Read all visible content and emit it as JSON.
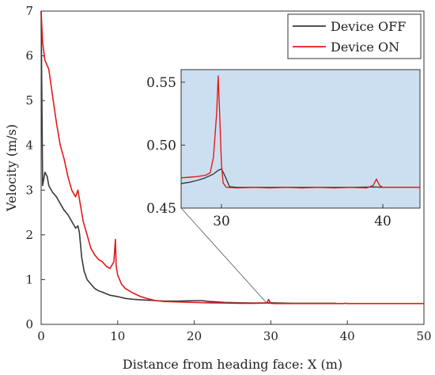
{
  "chart_data": {
    "type": "line",
    "xlabel": "Distance from heading face: X (m)",
    "ylabel": "Velocity (m/s)",
    "xlim": [
      0,
      50
    ],
    "ylim": [
      0,
      7
    ],
    "xticks": [
      "0",
      "10",
      "20",
      "30",
      "40",
      "50"
    ],
    "yticks": [
      "0",
      "1",
      "2",
      "3",
      "4",
      "5",
      "6",
      "7"
    ],
    "legend": {
      "position": "top-right"
    },
    "series": [
      {
        "name": "Device OFF",
        "color": "#3a3a3a",
        "x": [
          0,
          0.2,
          0.5,
          0.8,
          1.0,
          1.5,
          2.0,
          2.5,
          3.0,
          3.5,
          4.0,
          4.5,
          4.8,
          5.0,
          5.3,
          5.6,
          6.0,
          6.5,
          7.0,
          7.5,
          8.0,
          9.0,
          10.0,
          11.0,
          12.0,
          13.0,
          14.0,
          15.0,
          16.0,
          18.0,
          20.0,
          21.0,
          22.0,
          24.0,
          26.0,
          28.0,
          30.0,
          33.0,
          36.0,
          38.5
        ],
        "y": [
          7.0,
          3.1,
          3.4,
          3.3,
          3.1,
          2.95,
          2.85,
          2.7,
          2.55,
          2.45,
          2.3,
          2.15,
          2.2,
          2.05,
          1.5,
          1.2,
          1.0,
          0.9,
          0.8,
          0.75,
          0.72,
          0.65,
          0.62,
          0.58,
          0.56,
          0.55,
          0.54,
          0.53,
          0.52,
          0.52,
          0.53,
          0.53,
          0.51,
          0.49,
          0.48,
          0.475,
          0.48,
          0.47,
          0.47,
          0.47
        ]
      },
      {
        "name": "Device ON",
        "color": "#e31a1c",
        "x": [
          0,
          0.2,
          0.5,
          1.0,
          1.5,
          2.0,
          2.5,
          3.0,
          3.5,
          4.0,
          4.5,
          4.8,
          5.0,
          5.5,
          6.0,
          6.5,
          7.0,
          7.5,
          8.0,
          8.5,
          9.0,
          9.5,
          9.7,
          9.8,
          10.0,
          10.5,
          11.0,
          12.0,
          13.0,
          14.0,
          15.0,
          16.0,
          18.0,
          20.0,
          22.0,
          24.0,
          26.0,
          28.0,
          29.5,
          29.7,
          30.0,
          30.5,
          35.0,
          39.5,
          39.7,
          40.0,
          45.0,
          50.0
        ],
        "y": [
          7.0,
          6.3,
          5.9,
          5.7,
          5.1,
          4.5,
          4.0,
          3.7,
          3.3,
          3.0,
          2.85,
          3.0,
          2.8,
          2.3,
          2.0,
          1.7,
          1.55,
          1.45,
          1.4,
          1.3,
          1.25,
          1.4,
          1.9,
          1.3,
          1.1,
          0.9,
          0.8,
          0.7,
          0.62,
          0.57,
          0.53,
          0.51,
          0.5,
          0.49,
          0.48,
          0.475,
          0.47,
          0.47,
          0.48,
          0.555,
          0.47,
          0.465,
          0.465,
          0.465,
          0.472,
          0.465,
          0.465,
          0.465
        ]
      }
    ],
    "inset": {
      "xlim": [
        27.5,
        42.3
      ],
      "ylim": [
        0.45,
        0.56
      ],
      "xticks": [
        "30",
        "40"
      ],
      "yticks": [
        "0.45",
        "0.50",
        "0.55"
      ],
      "background": "#ccdff0",
      "zoom_point": {
        "x": 29.5,
        "y": 0.47
      },
      "series": [
        {
          "name": "Device OFF",
          "color": "#3a3a3a",
          "x": [
            27.5,
            28.0,
            28.5,
            29.0,
            29.5,
            29.8,
            30.0,
            30.2,
            30.5,
            31.0,
            32.0,
            34.0,
            36.0,
            38.0,
            39.5,
            40.0,
            40.5,
            42.3
          ],
          "y": [
            0.4695,
            0.4705,
            0.472,
            0.474,
            0.477,
            0.48,
            0.481,
            0.476,
            0.467,
            0.4665,
            0.4665,
            0.4665,
            0.4665,
            0.4665,
            0.4668,
            0.4665,
            0.4665,
            0.4665
          ]
        },
        {
          "name": "Device ON",
          "color": "#e31a1c",
          "x": [
            27.5,
            28.0,
            28.5,
            29.0,
            29.3,
            29.5,
            29.7,
            29.8,
            29.9,
            30.0,
            30.1,
            30.3,
            31.0,
            32.0,
            33.0,
            34.0,
            35.0,
            36.0,
            37.0,
            38.0,
            39.0,
            39.4,
            39.6,
            39.8,
            40.0,
            41.0,
            42.3
          ],
          "y": [
            0.474,
            0.4745,
            0.475,
            0.476,
            0.478,
            0.49,
            0.525,
            0.555,
            0.52,
            0.485,
            0.47,
            0.4665,
            0.466,
            0.4665,
            0.466,
            0.4665,
            0.466,
            0.4665,
            0.466,
            0.4665,
            0.466,
            0.468,
            0.473,
            0.468,
            0.4665,
            0.4665,
            0.4665
          ]
        }
      ]
    }
  }
}
